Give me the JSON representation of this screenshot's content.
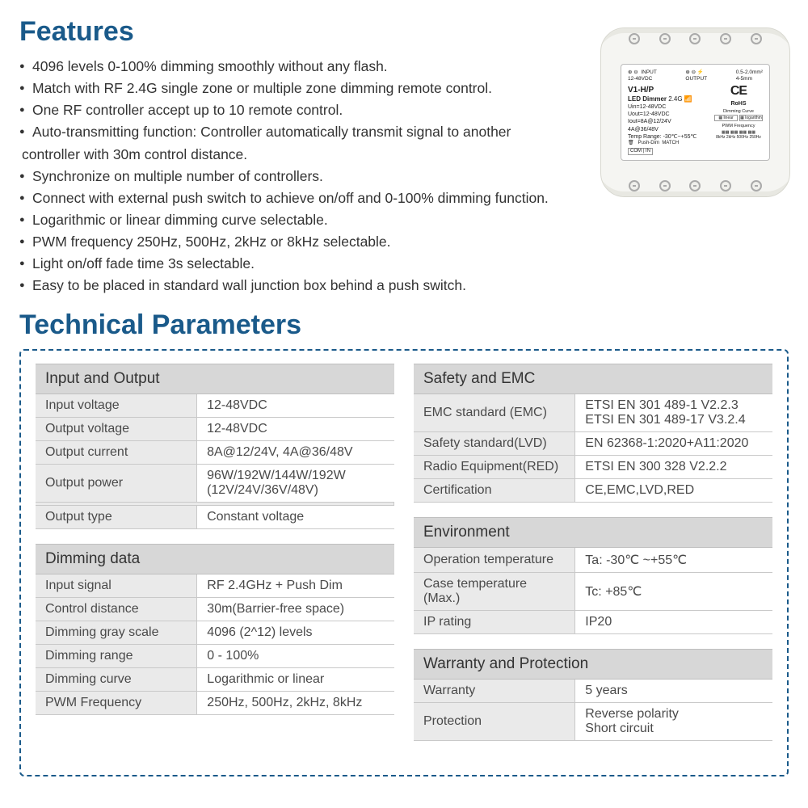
{
  "headings": {
    "features": "Features",
    "technical": "Technical Parameters"
  },
  "features_list": [
    "4096 levels 0-100% dimming smoothly without any flash.",
    "Match with RF 2.4G single zone or multiple zone dimming remote control.",
    "One RF controller accept up to 10 remote control.",
    "Auto-transmitting function: Controller automatically transmit signal to another",
    "controller with 30m control distance.",
    "Synchronize on multiple number of controllers.",
    "Connect with external push switch to achieve on/off and 0-100% dimming function.",
    "Logarithmic or linear dimming curve selectable.",
    "PWM frequency 250Hz, 500Hz, 2kHz or 8kHz selectable.",
    "Light on/off fade time 3s selectable.",
    "Easy to be placed in standard wall junction box behind a push switch."
  ],
  "features_indent": [
    false,
    false,
    false,
    false,
    true,
    false,
    false,
    false,
    false,
    false,
    false
  ],
  "device": {
    "model": "V1-H/P",
    "name": "LED Dimmer",
    "freq": "2.4G",
    "input_label": "INPUT",
    "input_v": "12-48VDC",
    "output_label": "OUTPUT",
    "wire": "0.5-2.0mm²",
    "strip": "4-5mm",
    "uin": "Uin=12-48VDC",
    "uout": "Uout=12-48VDC",
    "iout1": "Iout=8A@12/24V",
    "iout2": "4A@36/48V",
    "temp": "Temp Range: -30℃~+55℃",
    "ce": "CE",
    "rohs": "RoHS",
    "curve": "Dimming Curve",
    "lin": "linear",
    "log": "logarithm",
    "pwmf": "PWM Frequency",
    "push": "Push-Dim",
    "match": "MATCH",
    "com": "COM",
    "in": "IN"
  },
  "tables": {
    "io": {
      "title": "Input and Output",
      "rows": [
        [
          "Input voltage",
          "12-48VDC"
        ],
        [
          "Output voltage",
          "12-48VDC"
        ],
        [
          "Output current",
          "8A@12/24V, 4A@36/48V"
        ],
        [
          "Output power",
          "96W/192W/144W/192W\n(12V/24V/36V/48V)"
        ],
        [
          "Output type",
          "Constant voltage"
        ]
      ]
    },
    "dimming": {
      "title": "Dimming data",
      "rows": [
        [
          "Input signal",
          "RF 2.4GHz + Push Dim"
        ],
        [
          "Control distance",
          "30m(Barrier-free space)"
        ],
        [
          "Dimming gray scale",
          "4096 (2^12) levels"
        ],
        [
          "Dimming range",
          "0 - 100%"
        ],
        [
          "Dimming curve",
          "Logarithmic or linear"
        ],
        [
          "PWM Frequency",
          "250Hz, 500Hz, 2kHz, 8kHz"
        ]
      ]
    },
    "safety": {
      "title": "Safety and EMC",
      "rows": [
        [
          "EMC standard (EMC)",
          "ETSI EN 301 489-1 V2.2.3\nETSI EN 301 489-17 V3.2.4"
        ],
        [
          "Safety standard(LVD)",
          "EN 62368-1:2020+A11:2020"
        ],
        [
          "Radio Equipment(RED)",
          "ETSI EN 300 328 V2.2.2"
        ],
        [
          "Certification",
          "CE,EMC,LVD,RED"
        ]
      ]
    },
    "env": {
      "title": "Environment",
      "rows": [
        [
          "Operation temperature",
          "Ta: -30℃ ~+55℃"
        ],
        [
          "Case temperature (Max.)",
          "Tc: +85℃"
        ],
        [
          "IP rating",
          "IP20"
        ]
      ]
    },
    "warranty": {
      "title": "Warranty and Protection",
      "rows": [
        [
          "Warranty",
          "5 years"
        ],
        [
          "Protection",
          "Reverse polarity\nShort circuit"
        ]
      ]
    }
  },
  "colors": {
    "heading": "#1a5a8a",
    "border_dash": "#1a5a8a",
    "table_header_bg": "#d7d7d7",
    "cell_bg": "#eaeaea",
    "cell_border": "#c9c9c9",
    "text": "#333333"
  }
}
